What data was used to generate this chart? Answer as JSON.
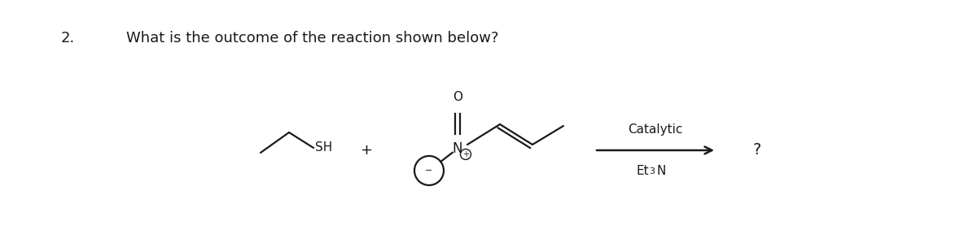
{
  "title_number": "2.",
  "question_text": "What is the outcome of the reaction shown below?",
  "background_color": "#ffffff",
  "text_color": "#1a1a1a",
  "fig_width": 12.0,
  "fig_height": 2.93,
  "question_fontsize": 13,
  "number_fontsize": 13,
  "chem_fontsize": 11,
  "arrow_label_above": "Catalytic",
  "arrow_label_below": "Et",
  "arrow_label_sub": "3",
  "arrow_label_n": "N",
  "question_mark": "?",
  "plus_sign": "+",
  "sh_label": "SH",
  "o_label": "O",
  "n_label": "N",
  "plus_charge": "+",
  "minus_charge": "−"
}
